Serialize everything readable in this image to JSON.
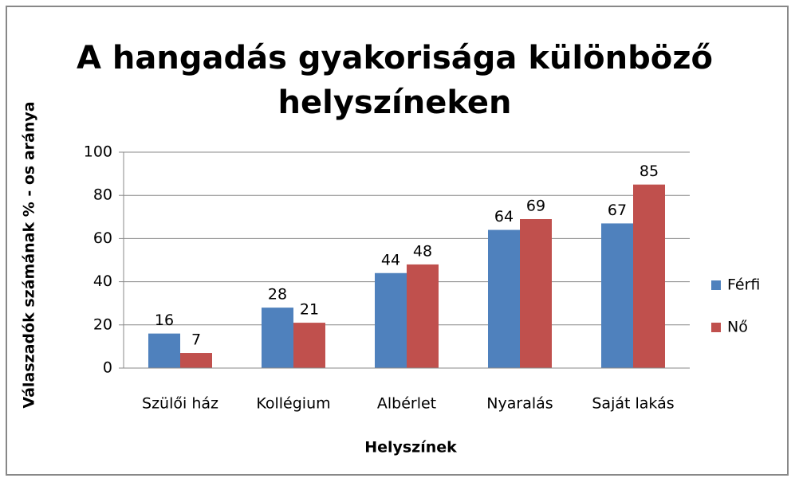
{
  "chart_data": {
    "type": "bar",
    "title": [
      "A hangadás gyakorisága különböző",
      "helyszíneken"
    ],
    "x_label": "Helyszínek",
    "y_label": "Válaszadók számának % - os aránya",
    "categories": [
      "Szülői ház",
      "Kollégium",
      "Albérlet",
      "Nyaralás",
      "Saját lakás"
    ],
    "series": [
      {
        "name": "Férfi",
        "color": "#4f81bd",
        "values": [
          16,
          28,
          44,
          64,
          67
        ]
      },
      {
        "name": "Nő",
        "color": "#c0504d",
        "values": [
          7,
          21,
          48,
          69,
          85
        ]
      }
    ],
    "ylim": [
      0,
      100
    ],
    "yticks": [
      0,
      20,
      40,
      60,
      80,
      100
    ],
    "grid": true,
    "legend": "right"
  }
}
